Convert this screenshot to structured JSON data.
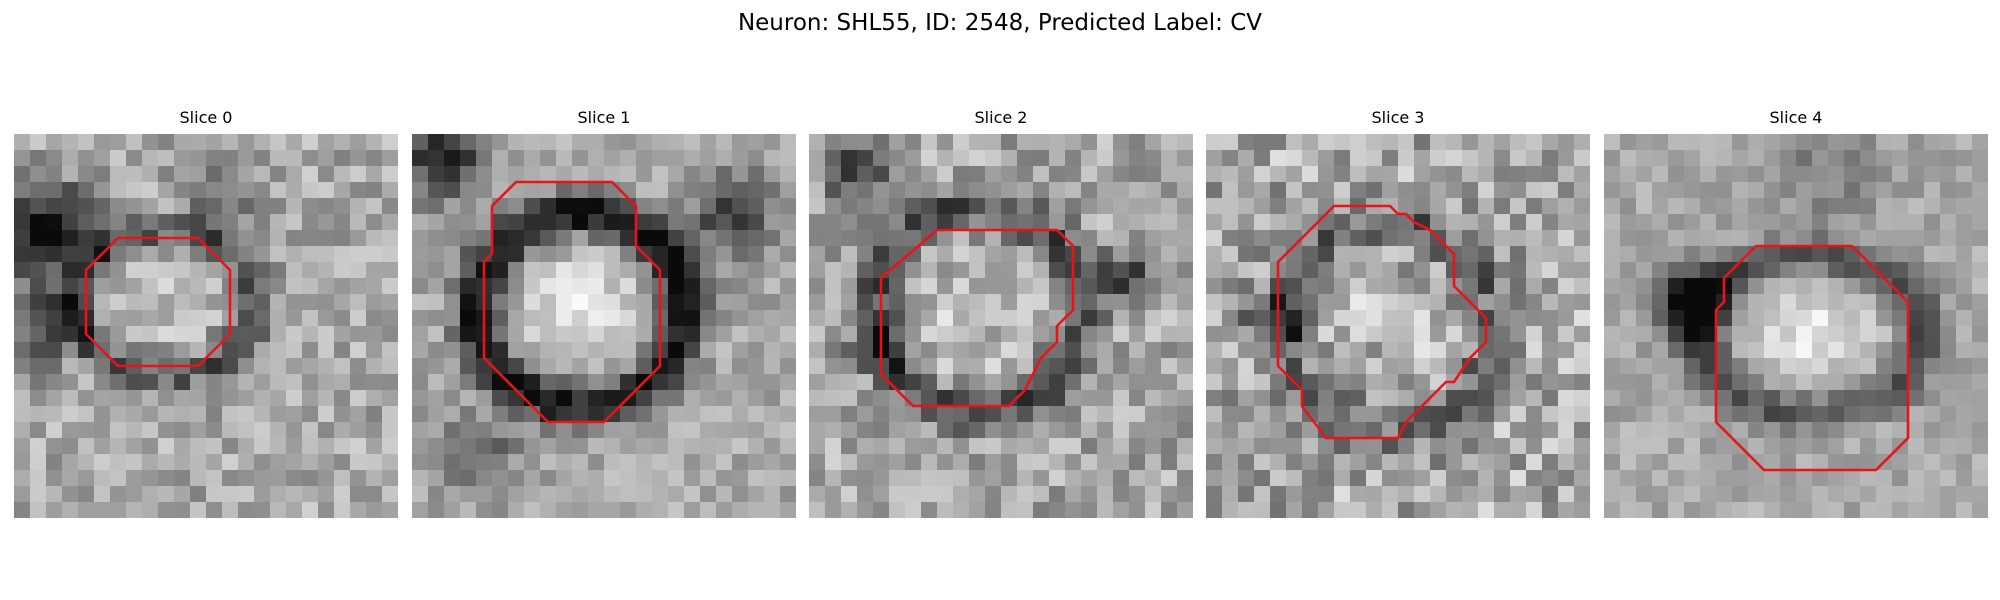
{
  "figure": {
    "title": "Neuron: SHL55, ID: 2548, Predicted Label: CV"
  },
  "slices": [
    {
      "label": "Slice 0"
    },
    {
      "label": "Slice 1"
    },
    {
      "label": "Slice 2"
    },
    {
      "label": "Slice 3"
    },
    {
      "label": "Slice 4"
    }
  ],
  "colors": {
    "contour": "#e8141a",
    "background": "#ffffff"
  }
}
